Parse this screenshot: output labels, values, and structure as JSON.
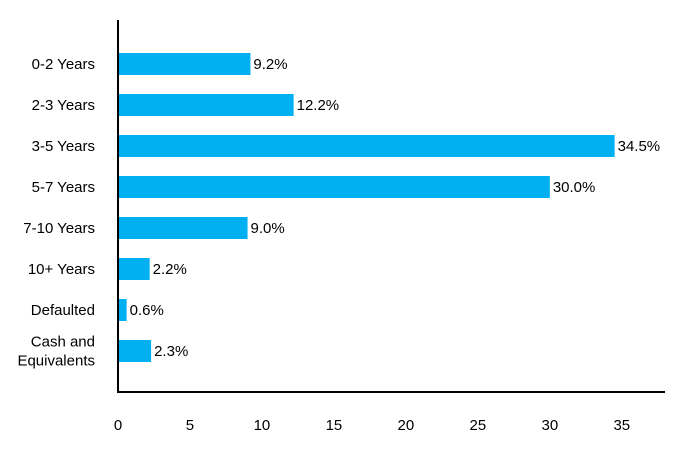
{
  "chart_data": {
    "type": "bar",
    "orientation": "horizontal",
    "title": "",
    "xlabel": "",
    "ylabel": "",
    "categories": [
      [
        "0-2 Years"
      ],
      [
        "2-3 Years"
      ],
      [
        "3-5 Years"
      ],
      [
        "5-7 Years"
      ],
      [
        "7-10 Years"
      ],
      [
        "10+ Years"
      ],
      [
        "Defaulted"
      ],
      [
        "Cash and",
        "Equivalents"
      ]
    ],
    "values": [
      9.2,
      12.2,
      34.5,
      30.0,
      9.0,
      2.2,
      0.6,
      2.3
    ],
    "value_labels": [
      "9.2%",
      "12.2%",
      "34.5%",
      "30.0%",
      "9.0%",
      "2.2%",
      "0.6%",
      "2.3%"
    ],
    "xlim": [
      0,
      38
    ],
    "x_ticks": [
      0,
      5,
      10,
      15,
      20,
      25,
      30,
      35
    ],
    "x_tick_labels": [
      "0",
      "5",
      "10",
      "15",
      "20",
      "25",
      "30",
      "35"
    ],
    "bar_color": "#00B0F0",
    "grid": false,
    "legend": "none"
  }
}
